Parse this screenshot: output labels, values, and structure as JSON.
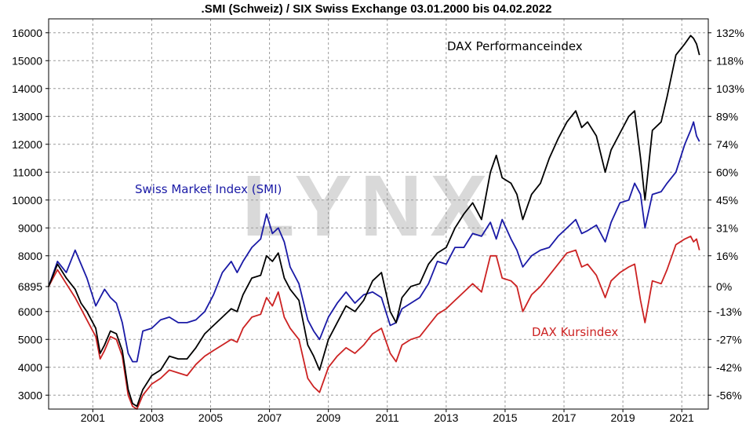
{
  "chart_data": {
    "type": "line",
    "title": ".SMI (Schweiz) / SIX Swiss Exchange 03.01.2000 bis 04.02.2022",
    "watermark": "LYNX",
    "ylim": [
      2500,
      16500
    ],
    "y_ticks": [
      "3000",
      "4000",
      "5000",
      "6000",
      "6895",
      "8000",
      "9000",
      "10000",
      "11000",
      "12000",
      "13000",
      "14000",
      "15000",
      "16000"
    ],
    "y_tick_values": [
      3000,
      4000,
      5000,
      6000,
      6895,
      8000,
      9000,
      10000,
      11000,
      12000,
      13000,
      14000,
      15000,
      16000
    ],
    "y2_ticks": [
      "-56%",
      "-42%",
      "-27%",
      "-13%",
      "0%",
      "16%",
      "31%",
      "45%",
      "60%",
      "74%",
      "89%",
      "103%",
      "118%",
      "132%"
    ],
    "xlim": [
      2000.0,
      2022.4
    ],
    "x_ticks": [
      "2001",
      "2003",
      "2005",
      "2007",
      "2009",
      "2011",
      "2013",
      "2015",
      "2017",
      "2019",
      "2021"
    ],
    "x_tick_values": [
      2001.5,
      2003.5,
      2005.5,
      2007.5,
      2009.5,
      2011.5,
      2013.5,
      2015.5,
      2017.5,
      2019.5,
      2021.5
    ],
    "grid": true,
    "series": [
      {
        "name": "Swiss Market Index (SMI)",
        "color": "#1a1aa6",
        "label_color": "#1a1aa6",
        "x": [
          2000.0,
          2000.3,
          2000.6,
          2000.9,
          2001.1,
          2001.3,
          2001.6,
          2001.75,
          2001.9,
          2002.1,
          2002.3,
          2002.5,
          2002.7,
          2002.85,
          2003.0,
          2003.2,
          2003.5,
          2003.8,
          2004.1,
          2004.4,
          2004.7,
          2005.0,
          2005.3,
          2005.6,
          2005.9,
          2006.2,
          2006.4,
          2006.6,
          2006.9,
          2007.2,
          2007.4,
          2007.6,
          2007.8,
          2008.0,
          2008.2,
          2008.5,
          2008.8,
          2009.0,
          2009.2,
          2009.5,
          2009.8,
          2010.1,
          2010.4,
          2010.7,
          2011.0,
          2011.3,
          2011.6,
          2011.8,
          2012.0,
          2012.3,
          2012.6,
          2012.9,
          2013.2,
          2013.5,
          2013.8,
          2014.1,
          2014.4,
          2014.7,
          2015.0,
          2015.2,
          2015.4,
          2015.7,
          2015.9,
          2016.1,
          2016.4,
          2016.7,
          2017.0,
          2017.3,
          2017.6,
          2017.9,
          2018.1,
          2018.3,
          2018.6,
          2018.9,
          2019.1,
          2019.4,
          2019.7,
          2019.9,
          2020.1,
          2020.25,
          2020.5,
          2020.8,
          2021.0,
          2021.3,
          2021.6,
          2021.8,
          2021.9,
          2022.0,
          2022.1
        ],
        "values": [
          6900,
          7800,
          7400,
          8200,
          7700,
          7200,
          6200,
          6500,
          6800,
          6500,
          6300,
          5600,
          4500,
          4200,
          4200,
          5300,
          5400,
          5700,
          5800,
          5600,
          5600,
          5700,
          6000,
          6600,
          7400,
          7800,
          7400,
          7800,
          8300,
          8600,
          9500,
          8800,
          9000,
          8500,
          7600,
          7000,
          5700,
          5300,
          5000,
          5800,
          6300,
          6700,
          6300,
          6600,
          6700,
          6500,
          5500,
          5600,
          6100,
          6300,
          6500,
          7000,
          7800,
          7700,
          8300,
          8300,
          8800,
          8700,
          9200,
          8600,
          9300,
          8600,
          8200,
          7600,
          8000,
          8200,
          8300,
          8700,
          9000,
          9300,
          8800,
          8900,
          9100,
          8500,
          9200,
          9900,
          10000,
          10600,
          10200,
          9000,
          10200,
          10300,
          10600,
          11000,
          12000,
          12500,
          12800,
          12300,
          12100
        ]
      },
      {
        "name": "DAX Performanceindex",
        "color": "#000000",
        "label_color": "#000000",
        "x": [
          2000.0,
          2000.3,
          2000.6,
          2000.9,
          2001.1,
          2001.3,
          2001.6,
          2001.75,
          2001.9,
          2002.1,
          2002.3,
          2002.5,
          2002.7,
          2002.85,
          2003.0,
          2003.2,
          2003.5,
          2003.8,
          2004.1,
          2004.4,
          2004.7,
          2005.0,
          2005.3,
          2005.6,
          2005.9,
          2006.2,
          2006.4,
          2006.6,
          2006.9,
          2007.2,
          2007.4,
          2007.6,
          2007.8,
          2008.0,
          2008.2,
          2008.5,
          2008.8,
          2009.0,
          2009.2,
          2009.5,
          2009.8,
          2010.1,
          2010.4,
          2010.7,
          2011.0,
          2011.3,
          2011.6,
          2011.8,
          2012.0,
          2012.3,
          2012.6,
          2012.9,
          2013.2,
          2013.5,
          2013.8,
          2014.1,
          2014.4,
          2014.7,
          2015.0,
          2015.2,
          2015.4,
          2015.7,
          2015.9,
          2016.1,
          2016.4,
          2016.7,
          2017.0,
          2017.3,
          2017.6,
          2017.9,
          2018.1,
          2018.3,
          2018.6,
          2018.9,
          2019.1,
          2019.4,
          2019.7,
          2019.9,
          2020.1,
          2020.25,
          2020.5,
          2020.8,
          2021.0,
          2021.3,
          2021.6,
          2021.8,
          2021.9,
          2022.0,
          2022.1
        ],
        "values": [
          6900,
          7700,
          7200,
          6800,
          6300,
          6000,
          5400,
          4500,
          4800,
          5300,
          5200,
          4600,
          3200,
          2700,
          2600,
          3200,
          3700,
          3900,
          4400,
          4300,
          4300,
          4700,
          5200,
          5500,
          5800,
          6100,
          6000,
          6600,
          7200,
          7300,
          8000,
          7800,
          8100,
          7200,
          6800,
          6400,
          4800,
          4400,
          3900,
          5000,
          5600,
          6200,
          6000,
          6400,
          7100,
          7400,
          6000,
          5600,
          6500,
          6900,
          7000,
          7700,
          8100,
          8300,
          9000,
          9500,
          9900,
          9300,
          11000,
          11600,
          10800,
          10600,
          10200,
          9300,
          10200,
          10600,
          11500,
          12200,
          12800,
          13200,
          12600,
          12800,
          12300,
          11000,
          11800,
          12400,
          13000,
          13200,
          11500,
          10000,
          12500,
          12800,
          13700,
          15200,
          15600,
          15900,
          15800,
          15600,
          15200
        ]
      },
      {
        "name": "DAX Kursindex",
        "color": "#cc2222",
        "label_color": "#cc2222",
        "x": [
          2000.0,
          2000.3,
          2000.6,
          2000.9,
          2001.1,
          2001.3,
          2001.6,
          2001.75,
          2001.9,
          2002.1,
          2002.3,
          2002.5,
          2002.7,
          2002.85,
          2003.0,
          2003.2,
          2003.5,
          2003.8,
          2004.1,
          2004.4,
          2004.7,
          2005.0,
          2005.3,
          2005.6,
          2005.9,
          2006.2,
          2006.4,
          2006.6,
          2006.9,
          2007.2,
          2007.4,
          2007.6,
          2007.8,
          2008.0,
          2008.2,
          2008.5,
          2008.8,
          2009.0,
          2009.2,
          2009.5,
          2009.8,
          2010.1,
          2010.4,
          2010.7,
          2011.0,
          2011.3,
          2011.6,
          2011.8,
          2012.0,
          2012.3,
          2012.6,
          2012.9,
          2013.2,
          2013.5,
          2013.8,
          2014.1,
          2014.4,
          2014.7,
          2015.0,
          2015.2,
          2015.4,
          2015.7,
          2015.9,
          2016.1,
          2016.4,
          2016.7,
          2017.0,
          2017.3,
          2017.6,
          2017.9,
          2018.1,
          2018.3,
          2018.6,
          2018.9,
          2019.1,
          2019.4,
          2019.7,
          2019.9,
          2020.1,
          2020.25,
          2020.5,
          2020.8,
          2021.0,
          2021.3,
          2021.6,
          2021.8,
          2021.9,
          2022.0,
          2022.1
        ],
        "values": [
          6900,
          7500,
          7000,
          6500,
          6100,
          5700,
          5100,
          4300,
          4600,
          5100,
          5000,
          4400,
          3000,
          2600,
          2500,
          3000,
          3400,
          3600,
          3900,
          3800,
          3700,
          4100,
          4400,
          4600,
          4800,
          5000,
          4900,
          5400,
          5800,
          5900,
          6500,
          6200,
          6700,
          5800,
          5400,
          5000,
          3600,
          3300,
          3100,
          4000,
          4400,
          4700,
          4500,
          4800,
          5200,
          5400,
          4500,
          4200,
          4800,
          5000,
          5100,
          5500,
          5900,
          6100,
          6400,
          6700,
          7000,
          6700,
          8000,
          8000,
          7200,
          7100,
          6900,
          6000,
          6600,
          6900,
          7300,
          7700,
          8100,
          8200,
          7600,
          7700,
          7300,
          6500,
          7100,
          7400,
          7600,
          7700,
          6400,
          5600,
          7100,
          7000,
          7500,
          8400,
          8600,
          8700,
          8500,
          8600,
          8200
        ]
      }
    ],
    "labels": [
      {
        "series": 0,
        "text": "Swiss Market Index (SMI)"
      },
      {
        "series": 1,
        "text": "DAX Performanceindex"
      },
      {
        "series": 2,
        "text": "DAX Kursindex"
      }
    ]
  }
}
